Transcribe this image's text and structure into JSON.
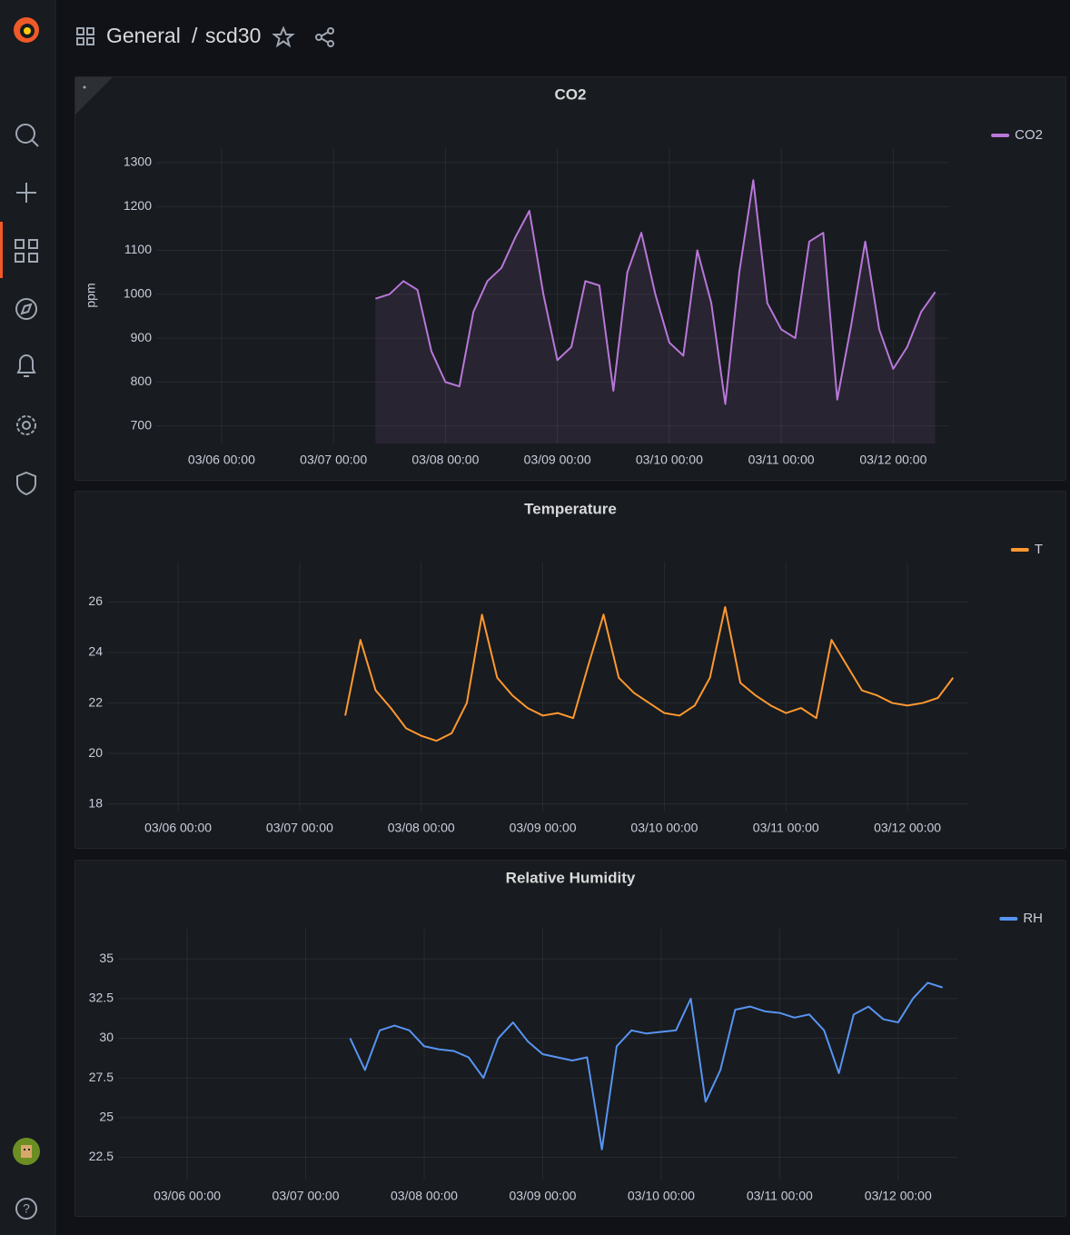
{
  "header": {
    "folder": "General",
    "separator": "/",
    "dashboard": "scd30"
  },
  "chart_data": [
    {
      "type": "line",
      "title": "CO2",
      "y_label": "ppm",
      "area": true,
      "grid": true,
      "legend": "top-right",
      "x": [
        "03/07 09:00",
        "03/07 12:00",
        "03/07 15:00",
        "03/07 18:00",
        "03/07 21:00",
        "03/08 00:00",
        "03/08 03:00",
        "03/08 06:00",
        "03/08 09:00",
        "03/08 12:00",
        "03/08 15:00",
        "03/08 18:00",
        "03/08 21:00",
        "03/09 00:00",
        "03/09 03:00",
        "03/09 06:00",
        "03/09 09:00",
        "03/09 12:00",
        "03/09 15:00",
        "03/09 18:00",
        "03/09 21:00",
        "03/10 00:00",
        "03/10 03:00",
        "03/10 06:00",
        "03/10 09:00",
        "03/10 12:00",
        "03/10 15:00",
        "03/10 18:00",
        "03/10 21:00",
        "03/11 00:00",
        "03/11 03:00",
        "03/11 06:00",
        "03/11 09:00",
        "03/11 12:00",
        "03/11 15:00",
        "03/11 18:00",
        "03/11 21:00",
        "03/12 00:00",
        "03/12 03:00",
        "03/12 06:00",
        "03/12 09:00"
      ],
      "series": [
        {
          "name": "CO2",
          "color": "#b877d9",
          "values": [
            990,
            1000,
            1030,
            1010,
            870,
            800,
            790,
            960,
            1030,
            1060,
            1130,
            1190,
            1000,
            850,
            880,
            1030,
            1020,
            780,
            1050,
            1140,
            1000,
            890,
            860,
            1100,
            980,
            750,
            1050,
            1260,
            980,
            920,
            900,
            1120,
            1140,
            760,
            930,
            1120,
            920,
            830,
            880,
            960,
            1005
          ]
        }
      ],
      "xlim": [
        "03/05 10:00",
        "03/12 12:00"
      ],
      "xticks": [
        "03/06 00:00",
        "03/07 00:00",
        "03/08 00:00",
        "03/09 00:00",
        "03/10 00:00",
        "03/11 00:00",
        "03/12 00:00"
      ],
      "ylim": [
        660,
        1335
      ],
      "yticks": [
        700,
        800,
        900,
        1000,
        1100,
        1200,
        1300
      ]
    },
    {
      "type": "line",
      "title": "Temperature",
      "area": false,
      "grid": true,
      "legend": "top-right",
      "x": [
        "03/07 09:00",
        "03/07 12:00",
        "03/07 15:00",
        "03/07 18:00",
        "03/07 21:00",
        "03/08 00:00",
        "03/08 03:00",
        "03/08 06:00",
        "03/08 09:00",
        "03/08 12:00",
        "03/08 15:00",
        "03/08 18:00",
        "03/08 21:00",
        "03/09 00:00",
        "03/09 03:00",
        "03/09 06:00",
        "03/09 09:00",
        "03/09 12:00",
        "03/09 15:00",
        "03/09 18:00",
        "03/09 21:00",
        "03/10 00:00",
        "03/10 03:00",
        "03/10 06:00",
        "03/10 09:00",
        "03/10 12:00",
        "03/10 15:00",
        "03/10 18:00",
        "03/10 21:00",
        "03/11 00:00",
        "03/11 03:00",
        "03/11 06:00",
        "03/11 09:00",
        "03/11 12:00",
        "03/11 15:00",
        "03/11 18:00",
        "03/11 21:00",
        "03/12 00:00",
        "03/12 03:00",
        "03/12 06:00",
        "03/12 09:00"
      ],
      "series": [
        {
          "name": "T",
          "color": "#ff9830",
          "values": [
            21.5,
            24.5,
            22.5,
            21.8,
            21.0,
            20.7,
            20.5,
            20.8,
            22,
            25.5,
            23,
            22.3,
            21.8,
            21.5,
            21.6,
            21.4,
            23.5,
            25.5,
            23,
            22.4,
            22,
            21.6,
            21.5,
            21.9,
            23,
            25.8,
            22.8,
            22.3,
            21.9,
            21.6,
            21.8,
            21.4,
            24.5,
            23.5,
            22.5,
            22.3,
            22,
            21.9,
            22,
            22.2,
            23
          ]
        }
      ],
      "xlim": [
        "03/05 10:00",
        "03/12 12:00"
      ],
      "xticks": [
        "03/06 00:00",
        "03/07 00:00",
        "03/08 00:00",
        "03/09 00:00",
        "03/10 00:00",
        "03/11 00:00",
        "03/12 00:00"
      ],
      "ylim": [
        17.7,
        27.6
      ],
      "yticks": [
        18,
        20,
        22,
        24,
        26
      ]
    },
    {
      "type": "line",
      "title": "Relative Humidity",
      "area": false,
      "grid": true,
      "legend": "top-right",
      "x": [
        "03/07 09:00",
        "03/07 12:00",
        "03/07 15:00",
        "03/07 18:00",
        "03/07 21:00",
        "03/08 00:00",
        "03/08 03:00",
        "03/08 06:00",
        "03/08 09:00",
        "03/08 12:00",
        "03/08 15:00",
        "03/08 18:00",
        "03/08 21:00",
        "03/09 00:00",
        "03/09 03:00",
        "03/09 06:00",
        "03/09 09:00",
        "03/09 12:00",
        "03/09 15:00",
        "03/09 18:00",
        "03/09 21:00",
        "03/10 00:00",
        "03/10 03:00",
        "03/10 06:00",
        "03/10 09:00",
        "03/10 12:00",
        "03/10 15:00",
        "03/10 18:00",
        "03/10 21:00",
        "03/11 00:00",
        "03/11 03:00",
        "03/11 06:00",
        "03/11 09:00",
        "03/11 12:00",
        "03/11 15:00",
        "03/11 18:00",
        "03/11 21:00",
        "03/12 00:00",
        "03/12 03:00",
        "03/12 06:00",
        "03/12 09:00"
      ],
      "series": [
        {
          "name": "RH",
          "color": "#5794f2",
          "values": [
            30,
            28,
            30.5,
            30.8,
            30.5,
            29.5,
            29.3,
            29.2,
            28.8,
            27.5,
            30,
            31,
            29.8,
            29,
            28.8,
            28.6,
            28.8,
            23,
            29.5,
            30.5,
            30.3,
            30.4,
            30.5,
            32.5,
            26,
            28,
            31.8,
            32,
            31.7,
            31.6,
            31.3,
            31.5,
            30.5,
            27.8,
            31.5,
            32,
            31.2,
            31,
            32.5,
            33.5,
            33.2
          ]
        }
      ],
      "xlim": [
        "03/05 10:00",
        "03/12 12:00"
      ],
      "xticks": [
        "03/06 00:00",
        "03/07 00:00",
        "03/08 00:00",
        "03/09 00:00",
        "03/10 00:00",
        "03/11 00:00",
        "03/12 00:00"
      ],
      "ylim": [
        21.1,
        36.9
      ],
      "yticks": [
        22.5,
        25,
        27.5,
        30,
        32.5,
        35
      ]
    }
  ]
}
